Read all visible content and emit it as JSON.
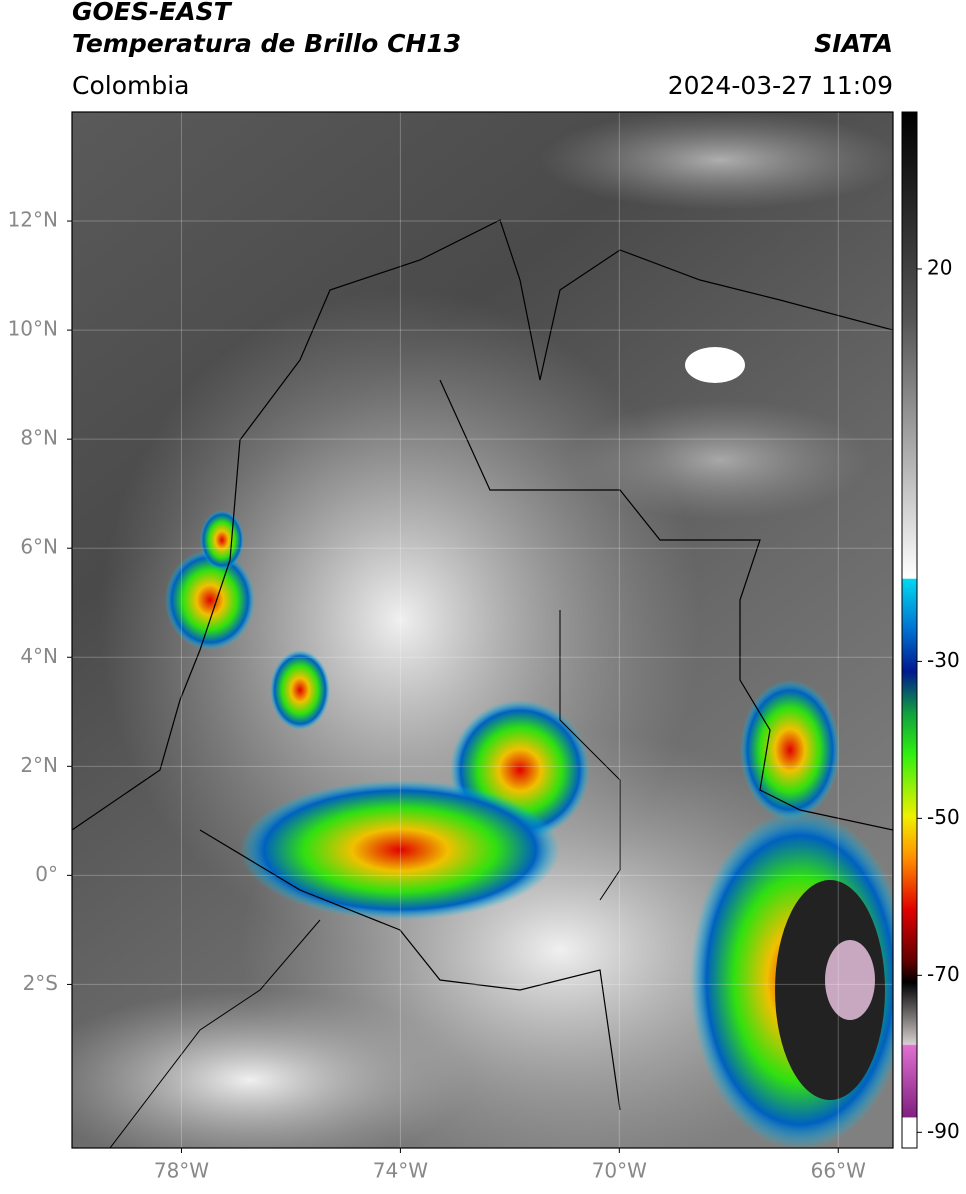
{
  "header": {
    "title": "GOES-EAST",
    "subtitle": "Temperatura de Brillo CH13",
    "region": "Colombia",
    "source": "SIATA",
    "datetime": "2024-03-27 11:09"
  },
  "map": {
    "xlim": [
      -80,
      -65
    ],
    "ylim": [
      -5,
      14
    ],
    "yticks": [
      {
        "value": 12,
        "label": "12°N"
      },
      {
        "value": 10,
        "label": "10°N"
      },
      {
        "value": 8,
        "label": "8°N"
      },
      {
        "value": 6,
        "label": "6°N"
      },
      {
        "value": 4,
        "label": "4°N"
      },
      {
        "value": 2,
        "label": "2°N"
      },
      {
        "value": 0,
        "label": "0°"
      },
      {
        "value": -2,
        "label": "2°S"
      }
    ],
    "xticks": [
      {
        "value": -78,
        "label": "78°W"
      },
      {
        "value": -74,
        "label": "74°W"
      },
      {
        "value": -70,
        "label": "70°W"
      },
      {
        "value": -66,
        "label": "66°W"
      }
    ],
    "grid": true
  },
  "colorbar": {
    "range": [
      -92,
      40
    ],
    "ticks": [
      20,
      -30,
      -50,
      -70,
      -90
    ]
  }
}
